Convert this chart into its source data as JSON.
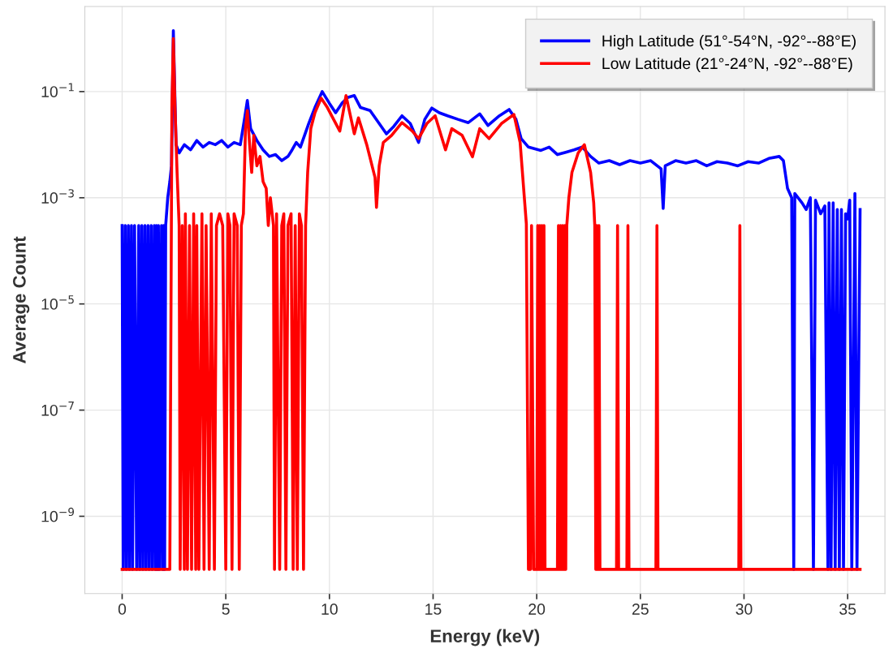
{
  "chart_data": {
    "type": "line",
    "xlabel": "Energy (keV)",
    "ylabel": "Average Count",
    "log": "y",
    "grid": true,
    "legend": "top right",
    "xlim": [
      -1.8,
      36.8
    ],
    "ylim": [
      3.5e-11,
      4
    ],
    "xticks": [
      0,
      5,
      10,
      15,
      20,
      25,
      30,
      35
    ],
    "yticks": [
      {
        "value": 0.1,
        "label": "10$^{−1}$"
      },
      {
        "value": 0.001,
        "label": "10$^{−3}$"
      },
      {
        "value": 1e-05,
        "label": "10$^{−5}$"
      },
      {
        "value": 1e-07,
        "label": "10$^{−7}$"
      },
      {
        "value": 1e-09,
        "label": "10$^{−9}$"
      }
    ],
    "series": [
      {
        "name": "High Latitude (51°-54°N, -92°--88°E)",
        "color": "#0000ff",
        "x": [
          0.0,
          0.05,
          0.15,
          0.2,
          0.3,
          0.35,
          0.45,
          0.5,
          0.6,
          0.7,
          0.8,
          0.85,
          0.95,
          1.0,
          1.1,
          1.15,
          1.25,
          1.3,
          1.4,
          1.45,
          1.55,
          1.6,
          1.65,
          1.7,
          1.75,
          1.8,
          1.9,
          1.95,
          2.0,
          2.05,
          2.1,
          2.2,
          2.3,
          2.38,
          2.47,
          2.6,
          2.75,
          3.0,
          3.3,
          3.6,
          3.9,
          4.2,
          4.5,
          4.8,
          5.1,
          5.4,
          5.7,
          5.9,
          6.04,
          6.2,
          6.5,
          6.8,
          7.1,
          7.4,
          7.7,
          8.0,
          8.2,
          8.4,
          8.6,
          8.8,
          9.0,
          9.3,
          9.65,
          10.0,
          10.3,
          10.6,
          10.9,
          11.2,
          11.5,
          11.96,
          12.4,
          12.75,
          13.1,
          13.5,
          13.9,
          14.3,
          14.6,
          14.94,
          15.3,
          15.7,
          16.2,
          16.7,
          17.25,
          17.65,
          18.2,
          18.67,
          19.0,
          19.25,
          19.6,
          20.2,
          20.6,
          21.0,
          21.4,
          21.8,
          22.2,
          22.6,
          23.0,
          23.5,
          24.0,
          24.5,
          25.0,
          25.5,
          26.0,
          26.1,
          26.2,
          26.7,
          27.2,
          27.7,
          28.2,
          28.7,
          29.2,
          29.7,
          30.2,
          30.7,
          31.2,
          31.7,
          31.9,
          32.1,
          32.3,
          32.4,
          32.45,
          32.8,
          33.0,
          33.2,
          33.35,
          33.45,
          33.7,
          33.9,
          34.05,
          34.1,
          34.2,
          34.3,
          34.4,
          34.5,
          34.6,
          34.7,
          34.8,
          34.9,
          35.0,
          35.1,
          35.2,
          35.35,
          35.45,
          35.6
        ],
        "values": [
          0.0003,
          1e-10,
          0.0003,
          1e-10,
          0.0003,
          1e-10,
          0.0003,
          1e-10,
          0.0003,
          1e-10,
          0.0003,
          1e-10,
          0.0003,
          1e-10,
          0.0003,
          1e-10,
          0.0003,
          1e-10,
          0.0003,
          1e-10,
          0.0003,
          1e-10,
          0.0003,
          1e-10,
          0.0003,
          1e-10,
          0.0003,
          1e-10,
          0.0003,
          1e-10,
          0.0003,
          0.001,
          0.002,
          0.004,
          1.4,
          0.01,
          0.007,
          0.01,
          0.008,
          0.012,
          0.009,
          0.011,
          0.01,
          0.012,
          0.009,
          0.011,
          0.01,
          0.03,
          0.068,
          0.02,
          0.012,
          0.008,
          0.006,
          0.0065,
          0.005,
          0.006,
          0.008,
          0.011,
          0.009,
          0.015,
          0.025,
          0.05,
          0.1,
          0.06,
          0.04,
          0.06,
          0.078,
          0.084,
          0.05,
          0.044,
          0.025,
          0.016,
          0.022,
          0.035,
          0.025,
          0.011,
          0.03,
          0.049,
          0.04,
          0.035,
          0.03,
          0.026,
          0.038,
          0.023,
          0.035,
          0.046,
          0.03,
          0.013,
          0.009,
          0.0078,
          0.009,
          0.0065,
          0.0072,
          0.008,
          0.009,
          0.006,
          0.0045,
          0.005,
          0.0042,
          0.005,
          0.0045,
          0.005,
          0.0035,
          0.00063,
          0.004,
          0.005,
          0.0045,
          0.005,
          0.004,
          0.0048,
          0.0045,
          0.004,
          0.0048,
          0.0045,
          0.0055,
          0.006,
          0.005,
          0.0015,
          0.001,
          1e-10,
          0.0012,
          0.0008,
          0.0006,
          0.001,
          1e-10,
          0.0009,
          0.0005,
          0.0007,
          1e-10,
          0.0008,
          1e-10,
          0.0008,
          1e-10,
          0.0006,
          1e-10,
          0.0006,
          1e-10,
          0.0005,
          0.0004,
          0.0009,
          1e-10,
          0.0012,
          1e-10,
          0.0006
        ]
      },
      {
        "name": "Low Latitude (21°-24°N, -92°--88°E)",
        "color": "#ff0000",
        "x": [
          0.0,
          2.3,
          2.4,
          2.47,
          2.55,
          2.65,
          2.75,
          2.8,
          2.9,
          3.0,
          3.05,
          3.15,
          3.25,
          3.35,
          3.45,
          3.55,
          3.6,
          3.7,
          3.85,
          3.95,
          4.05,
          4.2,
          4.3,
          4.45,
          4.55,
          4.7,
          4.85,
          5.0,
          5.1,
          5.2,
          5.3,
          5.4,
          5.55,
          5.65,
          5.75,
          5.85,
          5.95,
          6.04,
          6.15,
          6.25,
          6.35,
          6.5,
          6.65,
          6.8,
          6.95,
          7.05,
          7.15,
          7.3,
          7.35,
          7.45,
          7.6,
          7.7,
          7.8,
          7.9,
          8.0,
          8.15,
          8.25,
          8.35,
          8.45,
          8.55,
          8.65,
          8.75,
          8.85,
          8.95,
          9.1,
          9.3,
          9.6,
          9.9,
          10.2,
          10.5,
          10.8,
          11.2,
          11.4,
          11.8,
          12.2,
          12.27,
          12.4,
          12.6,
          13.0,
          13.5,
          14.0,
          14.3,
          14.7,
          15.1,
          15.6,
          15.9,
          16.4,
          16.9,
          17.25,
          17.7,
          18.3,
          18.9,
          19.2,
          19.5,
          19.6,
          19.7,
          19.75,
          19.85,
          20.0,
          20.05,
          20.1,
          20.15,
          20.2,
          20.25,
          20.3,
          20.35,
          20.4,
          21.0,
          21.05,
          21.1,
          21.15,
          21.2,
          21.25,
          21.3,
          21.35,
          21.4,
          21.45,
          21.55,
          21.7,
          22.0,
          22.3,
          22.6,
          22.75,
          22.8,
          22.85,
          22.9,
          22.95,
          23.0,
          23.05,
          23.85,
          23.9,
          23.95,
          24.35,
          24.4,
          24.45,
          25.75,
          25.8,
          25.85,
          29.75,
          29.8,
          29.85,
          35.6
        ],
        "values": [
          1e-10,
          1e-10,
          0.05,
          1.0,
          0.05,
          0.003,
          0.0003,
          1e-10,
          0.0003,
          1e-10,
          0.0005,
          1e-10,
          0.0003,
          1e-10,
          0.0005,
          1e-10,
          0.0003,
          1e-10,
          0.0005,
          1e-10,
          0.0003,
          1e-10,
          0.0005,
          1e-10,
          0.0003,
          0.0005,
          0.0003,
          1e-10,
          0.0005,
          0.0003,
          1e-10,
          0.0005,
          0.0003,
          1e-10,
          0.0003,
          0.0005,
          0.02,
          0.044,
          0.01,
          0.003,
          0.015,
          0.004,
          0.006,
          0.002,
          0.0015,
          0.0003,
          0.001,
          0.0003,
          1e-10,
          0.0005,
          1e-10,
          0.0003,
          0.0005,
          1e-10,
          0.0003,
          0.0005,
          1e-10,
          0.0003,
          1e-10,
          0.0005,
          0.0003,
          1e-10,
          0.0003,
          0.003,
          0.02,
          0.04,
          0.075,
          0.05,
          0.03,
          0.018,
          0.084,
          0.016,
          0.032,
          0.01,
          0.0024,
          0.00066,
          0.004,
          0.011,
          0.015,
          0.026,
          0.018,
          0.013,
          0.025,
          0.035,
          0.008,
          0.02,
          0.015,
          0.0059,
          0.02,
          0.013,
          0.025,
          0.037,
          0.011,
          0.00032,
          1e-10,
          1e-10,
          0.0003,
          1e-10,
          1e-10,
          0.0003,
          1e-10,
          0.0003,
          1e-10,
          0.0003,
          1e-10,
          0.0003,
          1e-10,
          1e-10,
          0.0003,
          1e-10,
          0.0003,
          1e-10,
          0.0003,
          1e-10,
          0.0003,
          1e-10,
          0.0003,
          0.001,
          0.003,
          0.007,
          0.01,
          0.003,
          0.0008,
          0.0003,
          1e-10,
          0.0003,
          1e-10,
          0.0003,
          1e-10,
          1e-10,
          0.0003,
          1e-10,
          1e-10,
          0.0003,
          1e-10,
          1e-10,
          0.0003,
          1e-10,
          1e-10,
          0.0003,
          1e-10,
          1e-10
        ]
      }
    ]
  }
}
